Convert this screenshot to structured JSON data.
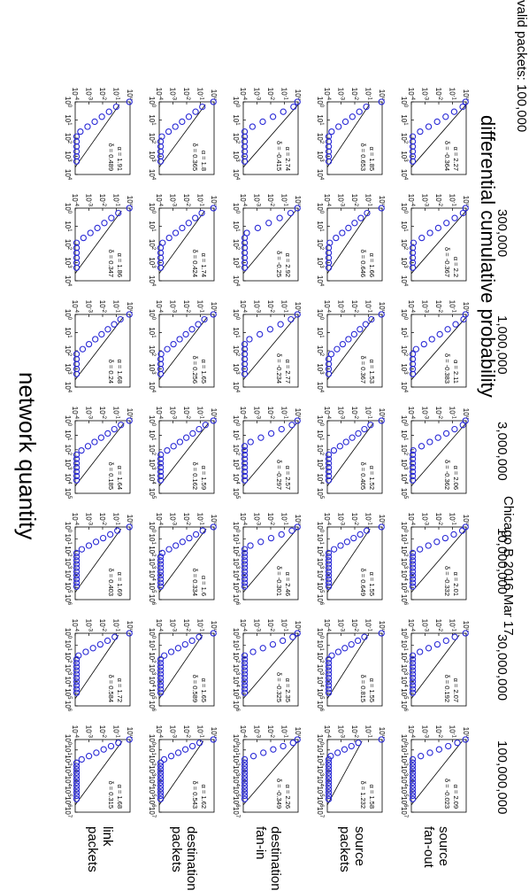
{
  "figure": {
    "title": "Chicago B 2016 Mar 17",
    "ylabel": "differential cumulative probability",
    "xlabel": "network quantity",
    "mark_color": "#2a2ad6",
    "line_color": "#000000"
  },
  "chart_data": {
    "type": "scatter",
    "scale": "log-log",
    "columns": [
      {
        "label": "valid packets: 100,000",
        "xmax_exp": 4
      },
      {
        "label": "300,000",
        "xmax_exp": 4
      },
      {
        "label": "1,000,000",
        "xmax_exp": 4
      },
      {
        "label": "3,000,000",
        "xmax_exp": 5
      },
      {
        "label": "10,000,000",
        "xmax_exp": 6
      },
      {
        "label": "30,000,000",
        "xmax_exp": 6
      },
      {
        "label": "100,000,000",
        "xmax_exp": 7
      }
    ],
    "rows": [
      {
        "label_line1": "source",
        "label_line2": "fan-out",
        "ymin_exp": -4
      },
      {
        "label_line1": "source",
        "label_line2": "packets",
        "ymin_exp": -4
      },
      {
        "label_line1": "destination",
        "label_line2": "fan-in",
        "ymin_exp": -4
      },
      {
        "label_line1": "destination",
        "label_line2": "packets",
        "ymin_exp": -4
      },
      {
        "label_line1": "link",
        "label_line2": "packets",
        "ymin_exp": -4
      }
    ],
    "fits": [
      [
        {
          "alpha": "α = 2.27",
          "delta": "δ = -0.364",
          "a": 2.27,
          "d": -0.364
        },
        {
          "alpha": "α = 2.2",
          "delta": "δ = -0.367",
          "a": 2.2,
          "d": -0.367
        },
        {
          "alpha": "α = 2.11",
          "delta": "δ = -0.383",
          "a": 2.11,
          "d": -0.383
        },
        {
          "alpha": "α = 2.06",
          "delta": "δ = -0.362",
          "a": 2.06,
          "d": -0.362
        },
        {
          "alpha": "α = 2.01",
          "delta": "δ = -0.332",
          "a": 2.01,
          "d": -0.332
        },
        {
          "alpha": "α = 2.07",
          "delta": "δ = 0.192",
          "a": 2.07,
          "d": 0.192
        },
        {
          "alpha": "α = 2.09",
          "delta": "δ = -0.023",
          "a": 2.09,
          "d": -0.023
        }
      ],
      [
        {
          "alpha": "α = 1.85",
          "delta": "δ = 0.653",
          "a": 1.85,
          "d": 0.653
        },
        {
          "alpha": "α = 1.66",
          "delta": "δ = 0.646",
          "a": 1.66,
          "d": 0.646
        },
        {
          "alpha": "α = 1.53",
          "delta": "δ = 0.367",
          "a": 1.53,
          "d": 0.367
        },
        {
          "alpha": "α = 1.52",
          "delta": "δ = 0.405",
          "a": 1.52,
          "d": 0.405
        },
        {
          "alpha": "α = 1.55",
          "delta": "δ = 0.649",
          "a": 1.55,
          "d": 0.649
        },
        {
          "alpha": "α = 1.55",
          "delta": "δ = 0.815",
          "a": 1.55,
          "d": 0.815
        },
        {
          "alpha": "α = 1.58",
          "delta": "δ = 1.232",
          "a": 1.58,
          "d": 1.232
        }
      ],
      [
        {
          "alpha": "α = 2.74",
          "delta": "δ = -0.415",
          "a": 2.74,
          "d": -0.415
        },
        {
          "alpha": "α = 2.92",
          "delta": "δ = -0.25",
          "a": 2.92,
          "d": -0.25
        },
        {
          "alpha": "α = 2.77",
          "delta": "δ = -0.234",
          "a": 2.77,
          "d": -0.234
        },
        {
          "alpha": "α = 2.57",
          "delta": "δ = -0.297",
          "a": 2.57,
          "d": -0.297
        },
        {
          "alpha": "α = 2.46",
          "delta": "δ = -0.301",
          "a": 2.46,
          "d": -0.301
        },
        {
          "alpha": "α = 2.35",
          "delta": "δ = -0.325",
          "a": 2.35,
          "d": -0.325
        },
        {
          "alpha": "α = 2.26",
          "delta": "δ = -0.349",
          "a": 2.26,
          "d": -0.349
        }
      ],
      [
        {
          "alpha": "α = 1.8",
          "delta": "δ = 0.365",
          "a": 1.8,
          "d": 0.365
        },
        {
          "alpha": "α = 1.74",
          "delta": "δ = 0.424",
          "a": 1.74,
          "d": 0.424
        },
        {
          "alpha": "α = 1.65",
          "delta": "δ = 0.256",
          "a": 1.65,
          "d": 0.256
        },
        {
          "alpha": "α = 1.59",
          "delta": "δ = 0.162",
          "a": 1.59,
          "d": 0.162
        },
        {
          "alpha": "α = 1.6",
          "delta": "δ = 0.334",
          "a": 1.6,
          "d": 0.334
        },
        {
          "alpha": "α = 1.65",
          "delta": "δ = 0.589",
          "a": 1.65,
          "d": 0.589
        },
        {
          "alpha": "α = 1.62",
          "delta": "δ = 0.543",
          "a": 1.62,
          "d": 0.543
        }
      ],
      [
        {
          "alpha": "α = 1.91",
          "delta": "δ = 0.489",
          "a": 1.91,
          "d": 0.489
        },
        {
          "alpha": "α = 1.86",
          "delta": "δ = 0.347",
          "a": 1.86,
          "d": 0.347
        },
        {
          "alpha": "α = 1.68",
          "delta": "δ = 0.24",
          "a": 1.68,
          "d": 0.24
        },
        {
          "alpha": "α = 1.64",
          "delta": "δ = 0.185",
          "a": 1.64,
          "d": 0.185
        },
        {
          "alpha": "α = 1.69",
          "delta": "δ = 0.403",
          "a": 1.69,
          "d": 0.403
        },
        {
          "alpha": "α = 1.72",
          "delta": "δ = 0.584",
          "a": 1.72,
          "d": 0.584
        },
        {
          "alpha": "α = 1.68",
          "delta": "δ = 0.315",
          "a": 1.68,
          "d": 0.315
        }
      ]
    ]
  }
}
